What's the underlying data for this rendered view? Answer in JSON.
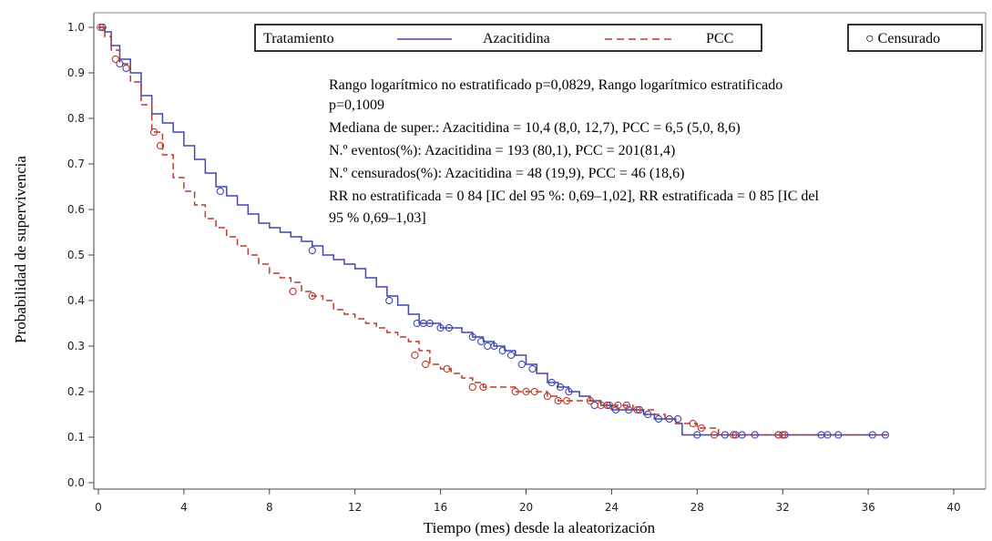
{
  "chart_data": {
    "type": "line",
    "ylabel": "Probabilidad de supervivencia",
    "xlabel": "Tiempo (mes) desde la aleatorización",
    "xlim": [
      0,
      40
    ],
    "ylim": [
      0.0,
      1.0
    ],
    "x_ticks": [
      "0",
      "4",
      "8",
      "12",
      "16",
      "20",
      "24",
      "28",
      "32",
      "36",
      "40"
    ],
    "y_ticks": [
      "0.0",
      "0.1",
      "0.2",
      "0.3",
      "0.4",
      "0.5",
      "0.6",
      "0.7",
      "0.8",
      "0.9",
      "1.0"
    ],
    "grid": false,
    "legend": {
      "title": "Tratamiento",
      "entries": [
        "Azacitidina",
        "PCC"
      ],
      "censor_label": "○ Censurado",
      "placement": "top"
    },
    "annotation_lines": [
      "Rango logarítmico no estratificado p=0,0829, Rango logarítmico estratificado",
      "p=0,1009",
      "Mediana de super.: Azacitidina = 10,4 (8,0, 12,7), PCC = 6,5 (5,0, 8,6)",
      "N.º eventos(%): Azacitidina = 193 (80,1), PCC = 201(81,4)",
      "N.º censurados(%): Azacitidina = 48 (19,9), PCC = 46 (18,6)",
      "RR no estratificada = 0 84 [IC del 95 %: 0,69–1,02], RR estratificada = 0 85 [IC del",
      "95 % 0,69–1,03]"
    ],
    "series": [
      {
        "name": "Azacitidina",
        "color": "#3f47b0",
        "style": "solid",
        "x": [
          0,
          0.3,
          0.6,
          1.0,
          1.5,
          2.0,
          2.5,
          3.0,
          3.5,
          4.0,
          4.5,
          5.0,
          5.5,
          6.0,
          6.5,
          7.0,
          7.5,
          8.0,
          8.5,
          9.0,
          9.5,
          10.0,
          10.5,
          11.0,
          11.5,
          12.0,
          12.5,
          13.0,
          13.5,
          14.0,
          14.5,
          15.0,
          15.5,
          16.0,
          16.5,
          17.0,
          17.5,
          18.0,
          18.5,
          19.0,
          19.5,
          20.0,
          20.5,
          21.0,
          21.5,
          22.0,
          22.5,
          23.0,
          23.5,
          24.0,
          24.5,
          25.0,
          25.5,
          26.0,
          26.5,
          27.0,
          27.3,
          28.0,
          29.0,
          30.0,
          31.0,
          32.0,
          33.0,
          34.0,
          35.0,
          36.0,
          36.9
        ],
        "y": [
          1.0,
          0.99,
          0.96,
          0.93,
          0.9,
          0.85,
          0.81,
          0.79,
          0.77,
          0.74,
          0.71,
          0.68,
          0.65,
          0.63,
          0.61,
          0.59,
          0.57,
          0.56,
          0.55,
          0.54,
          0.53,
          0.52,
          0.5,
          0.49,
          0.48,
          0.47,
          0.45,
          0.43,
          0.41,
          0.39,
          0.37,
          0.35,
          0.35,
          0.34,
          0.34,
          0.33,
          0.32,
          0.31,
          0.3,
          0.29,
          0.28,
          0.26,
          0.24,
          0.22,
          0.21,
          0.2,
          0.19,
          0.18,
          0.17,
          0.16,
          0.16,
          0.16,
          0.15,
          0.14,
          0.14,
          0.13,
          0.105,
          0.105,
          0.105,
          0.105,
          0.105,
          0.105,
          0.105,
          0.105,
          0.105,
          0.105,
          0.105
        ],
        "censored": [
          [
            0.2,
            1.0
          ],
          [
            1.0,
            0.92
          ],
          [
            1.3,
            0.91
          ],
          [
            5.7,
            0.64
          ],
          [
            10.0,
            0.51
          ],
          [
            13.6,
            0.4
          ],
          [
            14.9,
            0.35
          ],
          [
            15.2,
            0.35
          ],
          [
            15.5,
            0.35
          ],
          [
            16.0,
            0.34
          ],
          [
            16.4,
            0.34
          ],
          [
            17.5,
            0.32
          ],
          [
            17.9,
            0.31
          ],
          [
            18.2,
            0.3
          ],
          [
            18.5,
            0.3
          ],
          [
            18.9,
            0.29
          ],
          [
            19.3,
            0.28
          ],
          [
            19.8,
            0.26
          ],
          [
            20.3,
            0.25
          ],
          [
            21.2,
            0.22
          ],
          [
            21.6,
            0.21
          ],
          [
            22.0,
            0.2
          ],
          [
            23.2,
            0.17
          ],
          [
            23.8,
            0.17
          ],
          [
            24.2,
            0.16
          ],
          [
            24.8,
            0.16
          ],
          [
            25.3,
            0.16
          ],
          [
            25.7,
            0.15
          ],
          [
            26.2,
            0.14
          ],
          [
            26.7,
            0.14
          ],
          [
            27.1,
            0.14
          ],
          [
            28.0,
            0.105
          ],
          [
            29.3,
            0.105
          ],
          [
            29.8,
            0.105
          ],
          [
            30.1,
            0.105
          ],
          [
            30.7,
            0.105
          ],
          [
            31.8,
            0.105
          ],
          [
            32.1,
            0.105
          ],
          [
            33.8,
            0.105
          ],
          [
            34.1,
            0.105
          ],
          [
            34.6,
            0.105
          ],
          [
            36.2,
            0.105
          ],
          [
            36.8,
            0.105
          ]
        ]
      },
      {
        "name": "PCC",
        "color": "#c0392b",
        "style": "dashed",
        "x": [
          0,
          0.3,
          0.6,
          1.0,
          1.5,
          2.0,
          2.5,
          3.0,
          3.5,
          4.0,
          4.5,
          5.0,
          5.5,
          6.0,
          6.5,
          7.0,
          7.5,
          8.0,
          8.5,
          9.0,
          9.5,
          10.0,
          10.5,
          11.0,
          11.5,
          12.0,
          12.5,
          13.0,
          13.5,
          14.0,
          14.5,
          15.0,
          15.5,
          16.0,
          16.5,
          17.0,
          17.5,
          18.0,
          18.5,
          19.0,
          19.5,
          20.0,
          20.5,
          21.0,
          21.5,
          22.0,
          22.5,
          23.0,
          23.5,
          24.0,
          24.5,
          25.0,
          25.5,
          26.0,
          26.5,
          27.0,
          27.5,
          28.0,
          29.0,
          30.0,
          31.0,
          32.0,
          33.0,
          34.0,
          35.0,
          36.0,
          36.9
        ],
        "y": [
          1.0,
          0.98,
          0.95,
          0.92,
          0.88,
          0.83,
          0.77,
          0.72,
          0.67,
          0.64,
          0.61,
          0.58,
          0.56,
          0.54,
          0.52,
          0.5,
          0.48,
          0.46,
          0.45,
          0.44,
          0.42,
          0.41,
          0.4,
          0.38,
          0.37,
          0.36,
          0.35,
          0.34,
          0.33,
          0.32,
          0.31,
          0.29,
          0.26,
          0.25,
          0.24,
          0.23,
          0.22,
          0.21,
          0.21,
          0.21,
          0.2,
          0.2,
          0.2,
          0.19,
          0.18,
          0.18,
          0.18,
          0.18,
          0.17,
          0.17,
          0.17,
          0.16,
          0.16,
          0.15,
          0.14,
          0.13,
          0.13,
          0.12,
          0.105,
          0.105,
          0.105,
          0.105,
          0.105,
          0.105,
          0.105,
          0.105,
          0.105
        ],
        "censored": [
          [
            0.1,
            1.0
          ],
          [
            0.8,
            0.93
          ],
          [
            2.6,
            0.77
          ],
          [
            2.9,
            0.74
          ],
          [
            9.1,
            0.42
          ],
          [
            10.0,
            0.41
          ],
          [
            14.8,
            0.28
          ],
          [
            15.3,
            0.26
          ],
          [
            16.3,
            0.25
          ],
          [
            17.5,
            0.21
          ],
          [
            18.0,
            0.21
          ],
          [
            19.5,
            0.2
          ],
          [
            20.0,
            0.2
          ],
          [
            20.4,
            0.2
          ],
          [
            21.0,
            0.19
          ],
          [
            21.5,
            0.18
          ],
          [
            21.9,
            0.18
          ],
          [
            23.0,
            0.18
          ],
          [
            23.5,
            0.17
          ],
          [
            23.9,
            0.17
          ],
          [
            24.3,
            0.17
          ],
          [
            24.7,
            0.17
          ],
          [
            25.2,
            0.16
          ],
          [
            27.8,
            0.13
          ],
          [
            28.2,
            0.12
          ],
          [
            28.8,
            0.105
          ],
          [
            29.7,
            0.105
          ],
          [
            31.8,
            0.105
          ],
          [
            32.0,
            0.105
          ]
        ]
      }
    ]
  }
}
